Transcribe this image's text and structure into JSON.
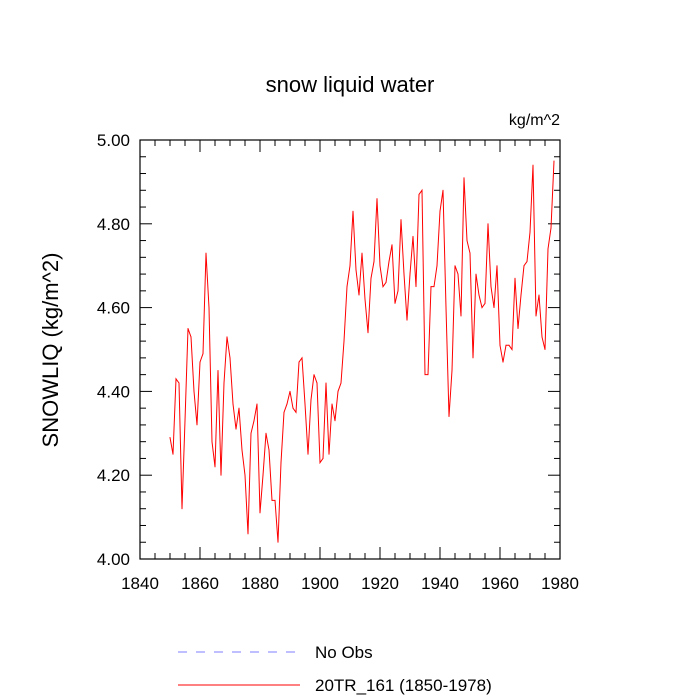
{
  "chart_data": {
    "type": "line",
    "title": "snow liquid water",
    "units_label": "kg/m^2",
    "xlabel": "",
    "ylabel": "SNOWLIQ  (kg/m^2)",
    "xlim": [
      1840,
      1980
    ],
    "ylim": [
      4.0,
      5.0
    ],
    "x_ticks": [
      1840,
      1860,
      1880,
      1900,
      1920,
      1940,
      1960,
      1980
    ],
    "x_tick_labels": [
      "1840",
      "1860",
      "1880",
      "1900",
      "1920",
      "1940",
      "1960",
      "1980"
    ],
    "y_ticks": [
      4.0,
      4.2,
      4.4,
      4.6,
      4.8,
      5.0
    ],
    "y_tick_labels": [
      "4.00",
      "4.20",
      "4.40",
      "4.60",
      "4.80",
      "5.00"
    ],
    "grid": false,
    "legend_position": "bottom",
    "series": [
      {
        "name": "20TR_161 (1850-1978)",
        "color": "#ff0000",
        "x_start": 1850,
        "x_step": 1,
        "values": [
          4.29,
          4.25,
          4.43,
          4.42,
          4.12,
          4.33,
          4.55,
          4.53,
          4.4,
          4.32,
          4.47,
          4.49,
          4.73,
          4.6,
          4.28,
          4.22,
          4.45,
          4.2,
          4.42,
          4.53,
          4.48,
          4.37,
          4.31,
          4.36,
          4.26,
          4.2,
          4.06,
          4.3,
          4.33,
          4.37,
          4.11,
          4.2,
          4.3,
          4.26,
          4.14,
          4.14,
          4.04,
          4.23,
          4.35,
          4.37,
          4.4,
          4.36,
          4.35,
          4.47,
          4.48,
          4.37,
          4.25,
          4.38,
          4.44,
          4.42,
          4.23,
          4.24,
          4.42,
          4.25,
          4.37,
          4.33,
          4.4,
          4.42,
          4.52,
          4.65,
          4.7,
          4.83,
          4.69,
          4.63,
          4.73,
          4.62,
          4.54,
          4.67,
          4.71,
          4.86,
          4.7,
          4.65,
          4.66,
          4.71,
          4.75,
          4.61,
          4.64,
          4.81,
          4.68,
          4.57,
          4.68,
          4.77,
          4.65,
          4.87,
          4.88,
          4.44,
          4.44,
          4.65,
          4.65,
          4.7,
          4.83,
          4.88,
          4.6,
          4.34,
          4.45,
          4.7,
          4.68,
          4.58,
          4.91,
          4.76,
          4.73,
          4.48,
          4.68,
          4.63,
          4.6,
          4.61,
          4.8,
          4.65,
          4.6,
          4.7,
          4.51,
          4.47,
          4.51,
          4.51,
          4.5,
          4.67,
          4.55,
          4.63,
          4.7,
          4.71,
          4.78,
          4.94,
          4.58,
          4.63,
          4.53,
          4.5,
          4.74,
          4.79,
          4.95
        ]
      }
    ],
    "legend": [
      {
        "label": "No Obs",
        "color": "#7f7fff",
        "dash": true
      },
      {
        "label": "20TR_161 (1850-1978)",
        "color": "#ff0000",
        "dash": false
      }
    ]
  }
}
